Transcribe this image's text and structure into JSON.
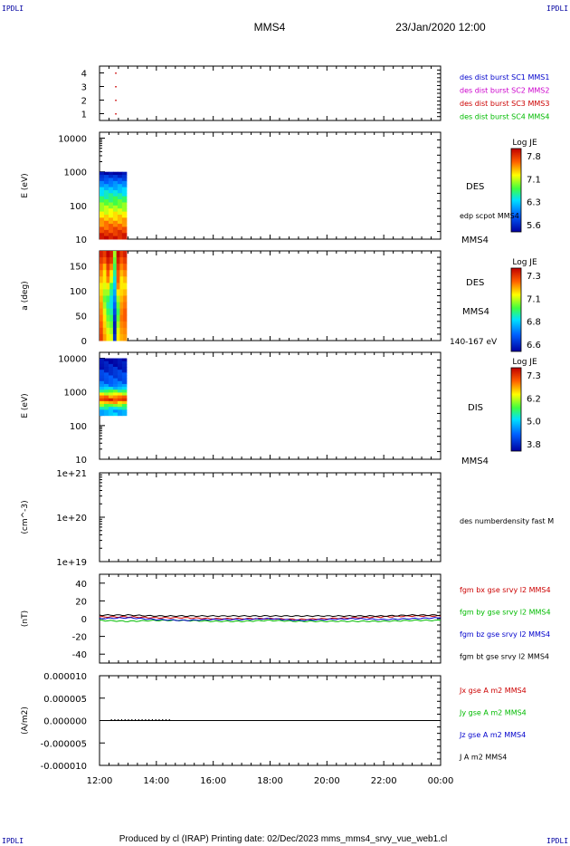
{
  "header": {
    "left_tag": "IPDLI",
    "right_tag": "IPDLI",
    "title": "MMS4",
    "datetime": "23/Jan/2020 12:00"
  },
  "footer": {
    "text": "Produced by cl (IRAP)   Printing date: 02/Dec/2023   mms_mms4_srvy_vue_web1.cl"
  },
  "colors": {
    "blue": "#0000cc",
    "magenta": "#cc00cc",
    "red": "#cc0000",
    "green": "#00bb00",
    "black": "#000000"
  },
  "chart_data": [
    {
      "type": "scatter",
      "panel": "burst",
      "yticks": [
        "1",
        "2",
        "3",
        "4"
      ],
      "ylim": [
        0.5,
        4.5
      ],
      "x_hours_range": [
        12,
        24
      ],
      "points": [
        {
          "x": 12.55,
          "y": 4,
          "color": "red"
        },
        {
          "x": 12.55,
          "y": 3,
          "color": "red"
        },
        {
          "x": 12.55,
          "y": 2,
          "color": "red"
        },
        {
          "x": 12.55,
          "y": 1,
          "color": "red"
        }
      ],
      "legend": [
        {
          "text": "des dist burst SC1 MMS1",
          "color": "#0000cc"
        },
        {
          "text": "des dist burst SC2 MMS2",
          "color": "#cc00cc"
        },
        {
          "text": "des dist burst SC3 MMS3",
          "color": "#cc0000"
        },
        {
          "text": "des dist burst SC4 MMS4",
          "color": "#00bb00"
        }
      ]
    },
    {
      "type": "heatmap",
      "panel": "des-energy",
      "ylabel": "E (eV)",
      "yticks": [
        "10",
        "100",
        "1000",
        "10000"
      ],
      "scale": "log",
      "ylim": [
        10,
        15000
      ],
      "data_x_hours": [
        12.0,
        12.95
      ],
      "data_y": [
        10,
        1000
      ],
      "side_labels": [
        "DES",
        "edp scpot MMS4",
        "MMS4"
      ],
      "colorbar": {
        "title": "Log JE",
        "ticks": [
          "7.8",
          "7.1",
          "6.3",
          "5.6"
        ]
      }
    },
    {
      "type": "heatmap",
      "panel": "des-pitch",
      "ylabel": "a (deg)",
      "yticks": [
        "0",
        "50",
        "100",
        "150"
      ],
      "ylim": [
        0,
        180
      ],
      "data_x_hours": [
        12.0,
        12.95
      ],
      "side_labels": [
        "DES",
        "MMS4",
        "140-167 eV"
      ],
      "colorbar": {
        "title": "Log JE",
        "ticks": [
          "7.3",
          "7.1",
          "6.8",
          "6.6"
        ]
      }
    },
    {
      "type": "heatmap",
      "panel": "dis-energy",
      "ylabel": "E (eV)",
      "yticks": [
        "10",
        "100",
        "1000",
        "10000"
      ],
      "scale": "log",
      "ylim": [
        10,
        15000
      ],
      "data_x_hours": [
        12.0,
        12.95
      ],
      "data_y": [
        200,
        10000
      ],
      "side_labels": [
        "DIS",
        "MMS4"
      ],
      "colorbar": {
        "title": "Log JE",
        "ticks": [
          "7.3",
          "6.2",
          "5.0",
          "3.8"
        ]
      }
    },
    {
      "type": "line",
      "panel": "density",
      "ylabel": "(cm^-3)",
      "yticks": [
        "1e+19",
        "1e+20",
        "1e+21"
      ],
      "scale": "log",
      "ylim": [
        1e+19,
        1e+21
      ],
      "series": [],
      "side_labels": [
        "des numberdensity fast M"
      ]
    },
    {
      "type": "line",
      "panel": "fgm",
      "ylabel": "(nT)",
      "yticks": [
        "-40",
        "-20",
        "0",
        "20",
        "40"
      ],
      "ylim": [
        -50,
        50
      ],
      "x_hours": [
        12,
        13,
        14,
        15,
        16,
        17,
        18,
        19,
        20,
        21,
        22,
        23,
        24
      ],
      "series": [
        {
          "name": "fgm bx gse srvy l2 MMS4",
          "color": "#cc0000",
          "values": [
            2,
            2,
            1,
            1,
            0,
            0,
            0,
            -1,
            0,
            1,
            2,
            3,
            3
          ]
        },
        {
          "name": "fgm by gse srvy l2 MMS4",
          "color": "#00bb00",
          "values": [
            -2,
            -3,
            -2,
            -2,
            -3,
            -3,
            -2,
            -3,
            -3,
            -3,
            -3,
            -2,
            -2
          ]
        },
        {
          "name": "fgm bz gse srvy l2 MMS4",
          "color": "#0000cc",
          "values": [
            0,
            1,
            -1,
            -2,
            -1,
            -1,
            0,
            -2,
            -1,
            0,
            -1,
            0,
            1
          ]
        },
        {
          "name": "fgm bt gse srvy l2 MMS4",
          "color": "#000000",
          "values": [
            4,
            4,
            3,
            3,
            3,
            3,
            3,
            3,
            3,
            3,
            3,
            4,
            4
          ]
        }
      ]
    },
    {
      "type": "line",
      "panel": "current",
      "ylabel": "(A/m2)",
      "yticks": [
        "-0.000010",
        "-0.000005",
        "0.000000",
        "0.000005",
        "0.000010"
      ],
      "ylim": [
        -1e-05,
        1e-05
      ],
      "x_hours": [
        12,
        24
      ],
      "series": [
        {
          "name": "Jx gse A m2 MMS4",
          "color": "#cc0000",
          "values": [
            0,
            0
          ]
        },
        {
          "name": "Jy gse A m2 MMS4",
          "color": "#00bb00",
          "values": [
            0,
            0
          ]
        },
        {
          "name": "Jz gse A m2 MMS4",
          "color": "#0000cc",
          "values": [
            0,
            0
          ]
        },
        {
          "name": "J A m2 MMS4",
          "color": "#000000",
          "values": [
            0,
            0
          ]
        }
      ],
      "xticks": [
        "12:00",
        "14:00",
        "16:00",
        "18:00",
        "20:00",
        "22:00",
        "00:00"
      ]
    }
  ]
}
